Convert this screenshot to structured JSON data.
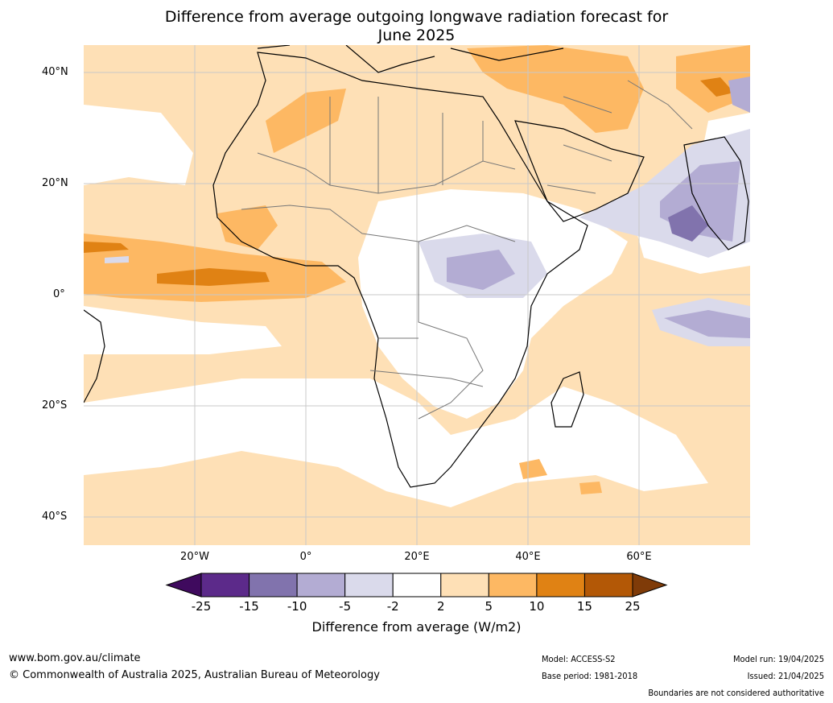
{
  "title_line1": "Difference from average outgoing longwave radiation forecast for",
  "title_line2": "June 2025",
  "lat_labels": [
    "40°N",
    "20°N",
    "0°",
    "20°S",
    "40°S"
  ],
  "lon_labels": [
    "20°W",
    "0°",
    "20°E",
    "40°E",
    "60°E"
  ],
  "colorbar": {
    "ticks": [
      "-25",
      "-15",
      "-10",
      "-5",
      "-2",
      "2",
      "5",
      "10",
      "15",
      "25"
    ],
    "colors": [
      "#3f0a5e",
      "#5c2a8a",
      "#8173ad",
      "#b3acd3",
      "#dadaeb",
      "#ffffff",
      "#fee0b6",
      "#fdb863",
      "#e08214",
      "#b35806",
      "#7f3b08"
    ],
    "label": "Difference from average (W/m2)"
  },
  "footer": {
    "website": "www.bom.gov.au/climate",
    "copyright": "© Commonwealth of Australia 2025, Australian Bureau of Meteorology",
    "model": "Model: ACCESS-S2",
    "base_period": "Base period: 1981-2018",
    "model_run": "Model run: 19/04/2025",
    "issued": "Issued: 21/04/2025",
    "disclaimer": "Boundaries are not considered authoritative"
  }
}
